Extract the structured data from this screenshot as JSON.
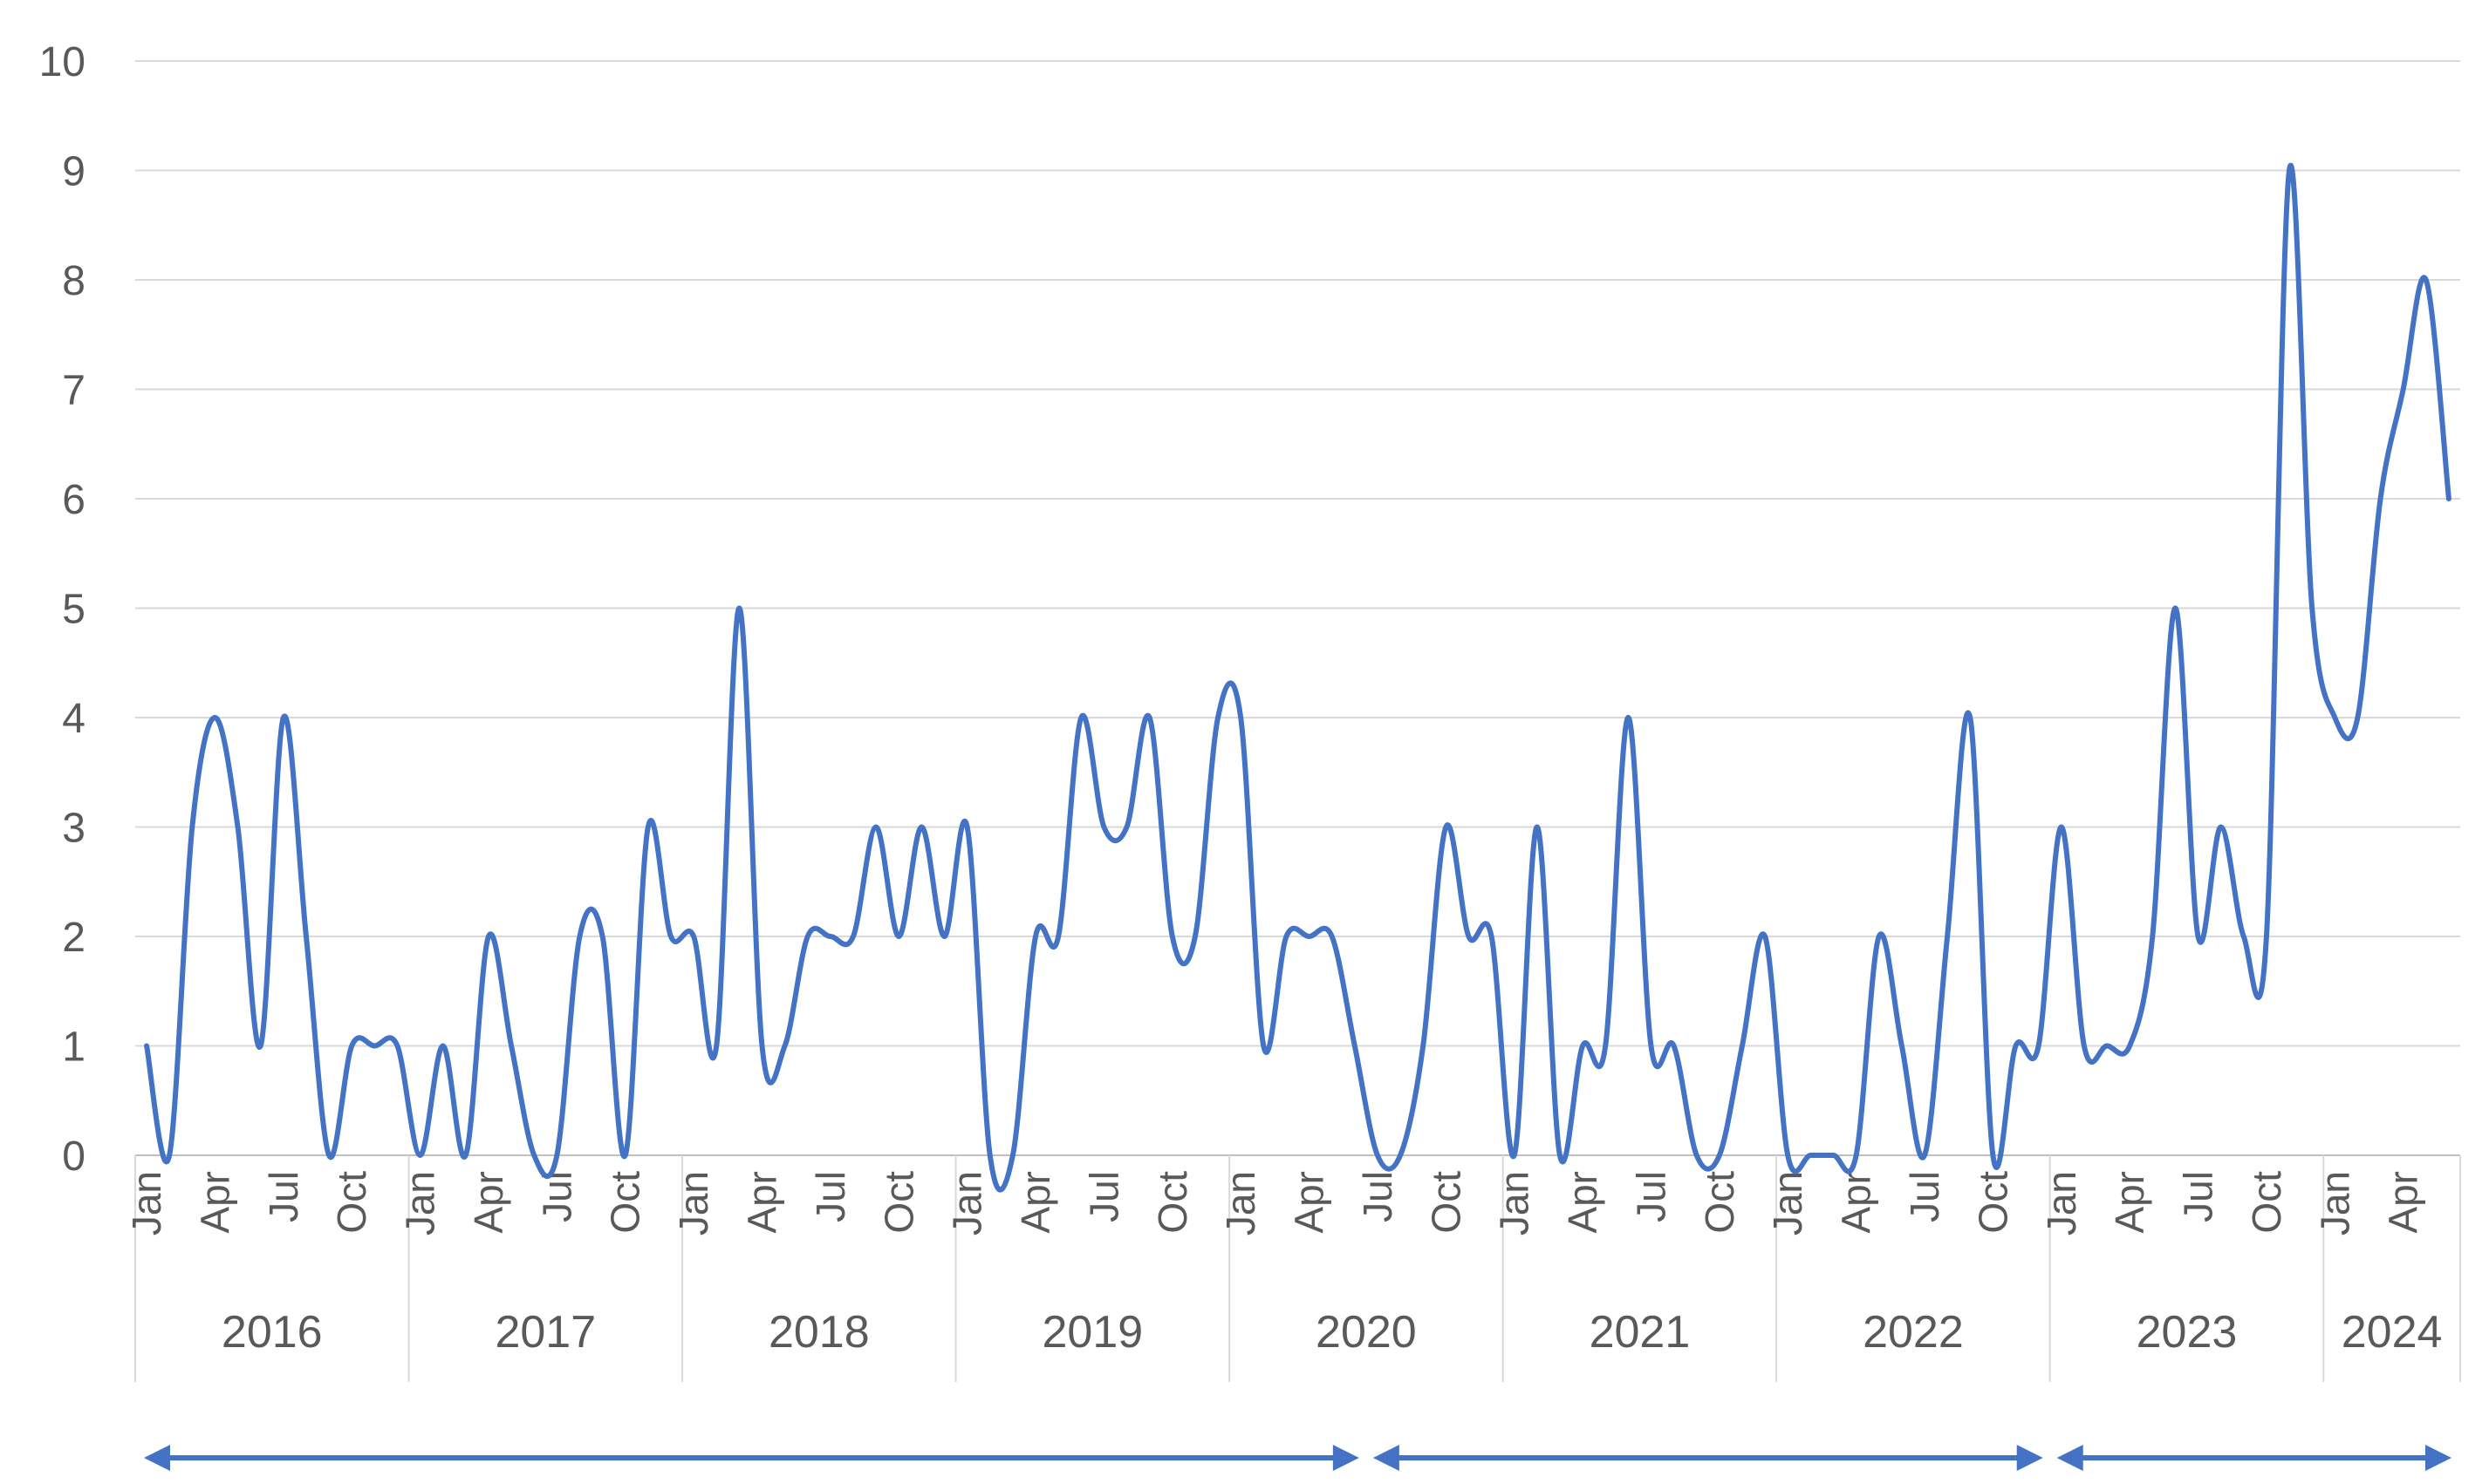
{
  "chart_data": {
    "type": "line",
    "title": "",
    "xlabel": "",
    "ylabel": "",
    "ylim": [
      0,
      10
    ],
    "yticks": [
      0,
      1,
      2,
      3,
      4,
      5,
      6,
      7,
      8,
      9,
      10
    ],
    "grid": true,
    "legend": "none",
    "smooth": true,
    "line_color": "#4472c4",
    "years": [
      {
        "label": "2016",
        "months": 12
      },
      {
        "label": "2017",
        "months": 12
      },
      {
        "label": "2018",
        "months": 12
      },
      {
        "label": "2019",
        "months": 12
      },
      {
        "label": "2020",
        "months": 12
      },
      {
        "label": "2021",
        "months": 12
      },
      {
        "label": "2022",
        "months": 12
      },
      {
        "label": "2023",
        "months": 12
      },
      {
        "label": "2024",
        "months": 6
      }
    ],
    "month_labels": {
      "0": "Jan",
      "3": "Apr",
      "6": "Jul",
      "9": "Oct"
    },
    "series": [
      {
        "values": [
          1,
          0,
          3,
          4,
          3,
          1,
          4,
          2,
          0,
          1,
          1,
          1,
          0,
          1,
          0,
          2,
          1,
          0,
          0,
          2,
          2,
          0,
          3,
          2,
          2,
          1,
          5,
          1,
          1,
          2,
          2,
          2,
          3,
          2,
          3,
          2,
          3,
          0,
          0,
          2,
          2,
          4,
          3,
          3,
          4,
          2,
          2,
          4,
          4,
          1,
          2,
          2,
          2,
          1,
          0,
          0,
          1,
          3,
          2,
          2,
          0,
          3,
          0,
          1,
          1,
          4,
          1,
          1,
          0,
          0,
          1,
          2,
          0,
          0,
          0,
          0,
          2,
          1,
          0,
          2,
          4,
          0,
          1,
          1,
          3,
          1,
          1,
          1,
          2,
          5,
          2,
          3,
          2,
          2,
          9,
          5,
          4,
          4,
          6,
          7,
          8,
          6
        ]
      }
    ],
    "periods": [
      {
        "start_index": 0,
        "end_index": 54
      },
      {
        "start_index": 54,
        "end_index": 84
      },
      {
        "start_index": 84,
        "end_index": 102
      }
    ]
  }
}
